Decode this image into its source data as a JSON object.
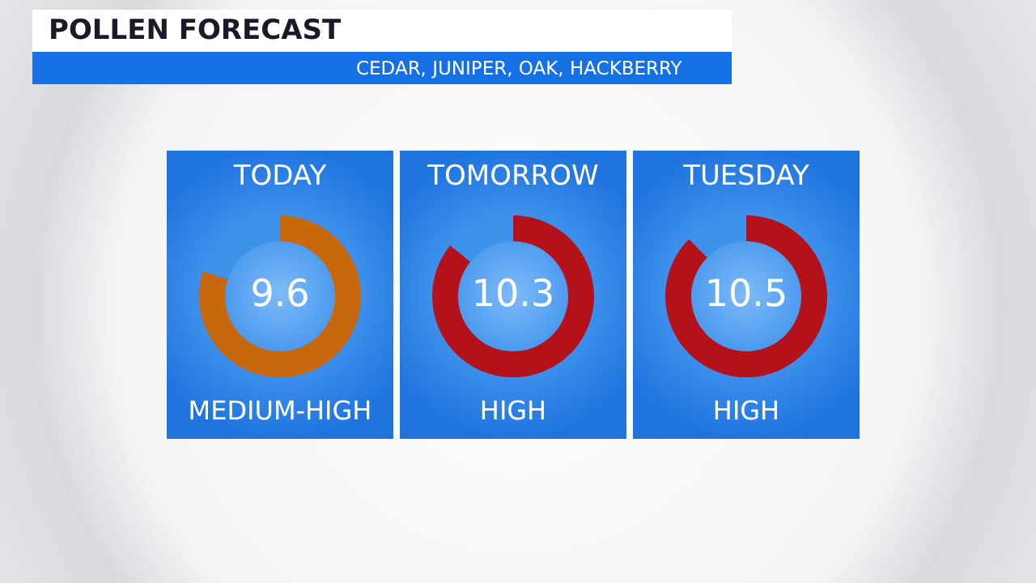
{
  "chart_data": [
    {
      "type": "other",
      "title": "POLLEN FORECAST",
      "subtitle": "CEDAR, JUNIPER, OAK, HACKBERRY"
    },
    {
      "type": "donut",
      "title": "TODAY",
      "categories": [
        null,
        null
      ],
      "values": [
        9.6,
        2.4
      ],
      "colors": [
        "#c8680e",
        "#3d92ea"
      ],
      "value_labels": [
        "9.6",
        null
      ],
      "annotations": [
        "MEDIUM-HIGH"
      ],
      "legend": false
    },
    {
      "type": "donut",
      "title": "TOMORROW",
      "categories": [
        null,
        null
      ],
      "values": [
        10.3,
        1.7
      ],
      "colors": [
        "#b3121a",
        "#3d92ea"
      ],
      "value_labels": [
        "10.3",
        null
      ],
      "annotations": [
        "HIGH"
      ],
      "legend": false
    },
    {
      "type": "donut",
      "title": "TUESDAY",
      "categories": [
        null,
        null
      ],
      "values": [
        10.5,
        1.5
      ],
      "colors": [
        "#b3121a",
        "#3d92ea"
      ],
      "value_labels": [
        "10.5",
        null
      ],
      "annotations": [
        "HIGH"
      ],
      "legend": false
    }
  ]
}
